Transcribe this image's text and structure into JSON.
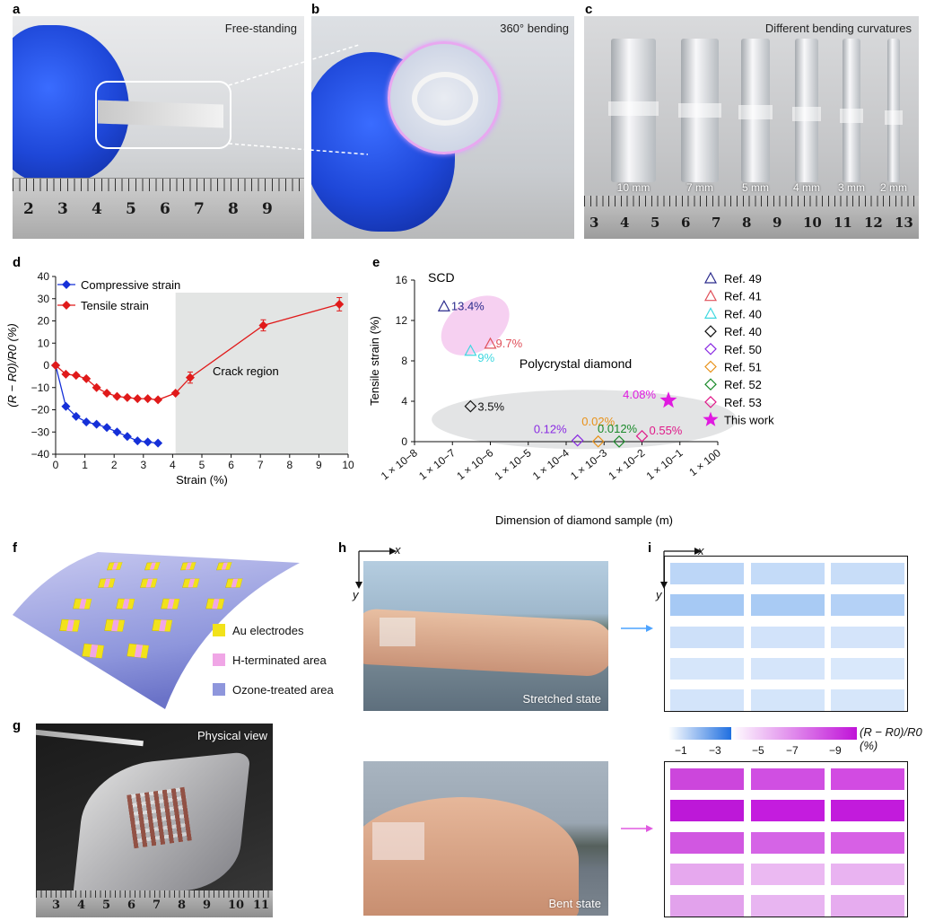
{
  "panels": {
    "a": {
      "label": "a",
      "caption": "Free-standing",
      "ruler": [
        "2",
        "3",
        "4",
        "5",
        "6",
        "7",
        "8",
        "9"
      ]
    },
    "b": {
      "label": "b",
      "caption": "360° bending"
    },
    "c": {
      "label": "c",
      "caption": "Different bending curvatures",
      "diameters": [
        "10 mm",
        "7 mm",
        "5 mm",
        "4 mm",
        "3 mm",
        "2 mm"
      ],
      "ruler": [
        "3",
        "4",
        "5",
        "6",
        "7",
        "8",
        "9",
        "10",
        "11",
        "12",
        "13"
      ]
    },
    "d": {
      "label": "d"
    },
    "e": {
      "label": "e",
      "scd_label": "SCD",
      "poly_label": "Polycrystal diamond"
    },
    "f": {
      "label": "f",
      "legend": [
        {
          "text": "Au electrodes",
          "color": "#f2e21a"
        },
        {
          "text": "H-terminated area",
          "color": "#f0a6e6"
        },
        {
          "text": "Ozone-treated area",
          "color": "#8e96dc"
        }
      ]
    },
    "g": {
      "label": "g",
      "caption": "Physical view",
      "ruler": [
        "3",
        "4",
        "5",
        "6",
        "7",
        "8",
        "9",
        "10",
        "11"
      ]
    },
    "h": {
      "label": "h",
      "x_axis": "x",
      "y_axis": "y",
      "stretched": "Stretched state",
      "bent": "Bent state"
    },
    "i": {
      "label": "i",
      "x_axis": "x",
      "y_axis": "y",
      "colorbar_label": "(R − R0)/R0 (%)",
      "colorbar_ticks": [
        "−1",
        "−3",
        "−5",
        "−7",
        "−9"
      ],
      "stretched_grid": [
        [
          "#bcd6f7",
          "#c4dbf8",
          "#c8ddf8"
        ],
        [
          "#a6c9f4",
          "#a9cbf4",
          "#b4d1f6"
        ],
        [
          "#cde0f9",
          "#d2e3fa",
          "#d4e4fa"
        ],
        [
          "#d6e6fa",
          "#d5e5fa",
          "#d9e8fb"
        ],
        [
          "#d3e4fa",
          "#d4e5fa",
          "#d6e6fa"
        ]
      ],
      "bent_grid": [
        [
          "#cc46dc",
          "#d04fe2",
          "#d24be2"
        ],
        [
          "#bd18d8",
          "#c41cde",
          "#c21bdc"
        ],
        [
          "#d157e1",
          "#d564e6",
          "#d760e5"
        ],
        [
          "#e6a8ee",
          "#ebb9f2",
          "#e9b3f1"
        ],
        [
          "#e2a2ec",
          "#e8b5f1",
          "#e6acef"
        ]
      ]
    }
  },
  "chart_data": [
    {
      "type": "line",
      "panel": "d",
      "xlabel": "Strain (%)",
      "ylabel": "(R − R0)/R0 (%)",
      "xlim": [
        0,
        10
      ],
      "ylim": [
        -40,
        40
      ],
      "xticks": [
        "0",
        "1",
        "2",
        "3",
        "4",
        "5",
        "6",
        "7",
        "8",
        "9",
        "10"
      ],
      "yticks": [
        "40",
        "30",
        "20",
        "10",
        "0",
        "−10",
        "−20",
        "−30",
        "−40"
      ],
      "annotation": "Crack region",
      "crack_region": [
        4.1,
        10
      ],
      "series": [
        {
          "name": "Compressive strain",
          "color": "#1530d8",
          "x": [
            0,
            0.35,
            0.7,
            1.05,
            1.4,
            1.75,
            2.1,
            2.45,
            2.8,
            3.15,
            3.5
          ],
          "y": [
            0,
            -18.5,
            -23,
            -25.5,
            -26.5,
            -28,
            -30,
            -32,
            -34,
            -34.5,
            -35
          ]
        },
        {
          "name": "Tensile strain",
          "color": "#e01a1a",
          "x": [
            0,
            0.35,
            0.7,
            1.05,
            1.4,
            1.75,
            2.1,
            2.45,
            2.8,
            3.15,
            3.5,
            4.1,
            4.6,
            7.1,
            9.7
          ],
          "y": [
            0,
            -4,
            -4.5,
            -6,
            -10,
            -12.5,
            -14,
            -14.5,
            -15,
            -15,
            -15.5,
            -12.5,
            -5.5,
            18,
            27.5
          ],
          "err": [
            0,
            0,
            0,
            0,
            0,
            0,
            0,
            0,
            0,
            0,
            0,
            0,
            2.5,
            2.5,
            3
          ]
        }
      ]
    },
    {
      "type": "scatter",
      "panel": "e",
      "xlabel": "Dimension of diamond sample (m)",
      "ylabel": "Tensile strain (%)",
      "xscale": "log",
      "xlim": [
        1e-08,
        1
      ],
      "ylim": [
        0,
        16
      ],
      "xticks": [
        "1 × 10−8",
        "1 × 10−7",
        "1 × 10−6",
        "1 × 10−5",
        "1 × 10−4",
        "1 × 10−3",
        "1 × 10−2",
        "1 × 10−1",
        "1 × 100"
      ],
      "yticks": [
        "16",
        "12",
        "8",
        "4",
        "0"
      ],
      "series": [
        {
          "name": "Ref. 49",
          "marker": "triangle",
          "color": "#2a2a8c",
          "x": 6e-08,
          "y": 13.4,
          "label": "13.4%"
        },
        {
          "name": "Ref. 41",
          "marker": "triangle",
          "color": "#e0505a",
          "x": 1e-06,
          "y": 9.7,
          "label": "9.7%"
        },
        {
          "name": "Ref. 40",
          "marker": "triangle",
          "color": "#3ed8e0",
          "x": 3e-07,
          "y": 9,
          "label": "9%"
        },
        {
          "name": "Ref. 40",
          "marker": "diamond",
          "color": "#111111",
          "x": 3e-07,
          "y": 3.5,
          "label": "3.5%"
        },
        {
          "name": "Ref. 50",
          "marker": "diamond",
          "color": "#8a2be2",
          "x": 0.0002,
          "y": 0.12,
          "label": "0.12%"
        },
        {
          "name": "Ref. 51",
          "marker": "diamond",
          "color": "#e8921a",
          "x": 0.0007,
          "y": 0.02,
          "label": "0.02%"
        },
        {
          "name": "Ref. 52",
          "marker": "diamond",
          "color": "#1a8a2a",
          "x": 0.0025,
          "y": 0.012,
          "label": "0.012%"
        },
        {
          "name": "Ref. 53",
          "marker": "diamond",
          "color": "#e01a8a",
          "x": 0.01,
          "y": 0.55,
          "label": "0.55%"
        },
        {
          "name": "This work",
          "marker": "star",
          "color": "#e01ae0",
          "x": 0.05,
          "y": 4.08,
          "label": "4.08%"
        }
      ]
    }
  ]
}
